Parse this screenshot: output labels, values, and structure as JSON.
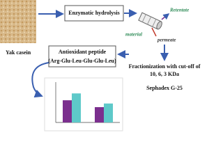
{
  "labels": {
    "source": "Yak casein",
    "step1": "Enzymatic hydrolysis",
    "retentate": "Retentate",
    "material": "material",
    "permeate": "permeate",
    "peptide_title": "Antioxidant peptide",
    "peptide_seq": "(Arg-Glu-Leu-Glu-Glu-Leu)",
    "fraction_line1": "Fractionization with cut-off of",
    "fraction_line2": "10, 6, 3 KDa",
    "column": "Sephadex G-25"
  },
  "inset_chart": {
    "type": "bar",
    "ylim": [
      0,
      1
    ],
    "series": [
      {
        "color": "#7b2f8e",
        "values": [
          0.55,
          0.38
        ]
      },
      {
        "color": "#5ec9c9",
        "values": [
          0.72,
          0.47
        ]
      }
    ]
  }
}
